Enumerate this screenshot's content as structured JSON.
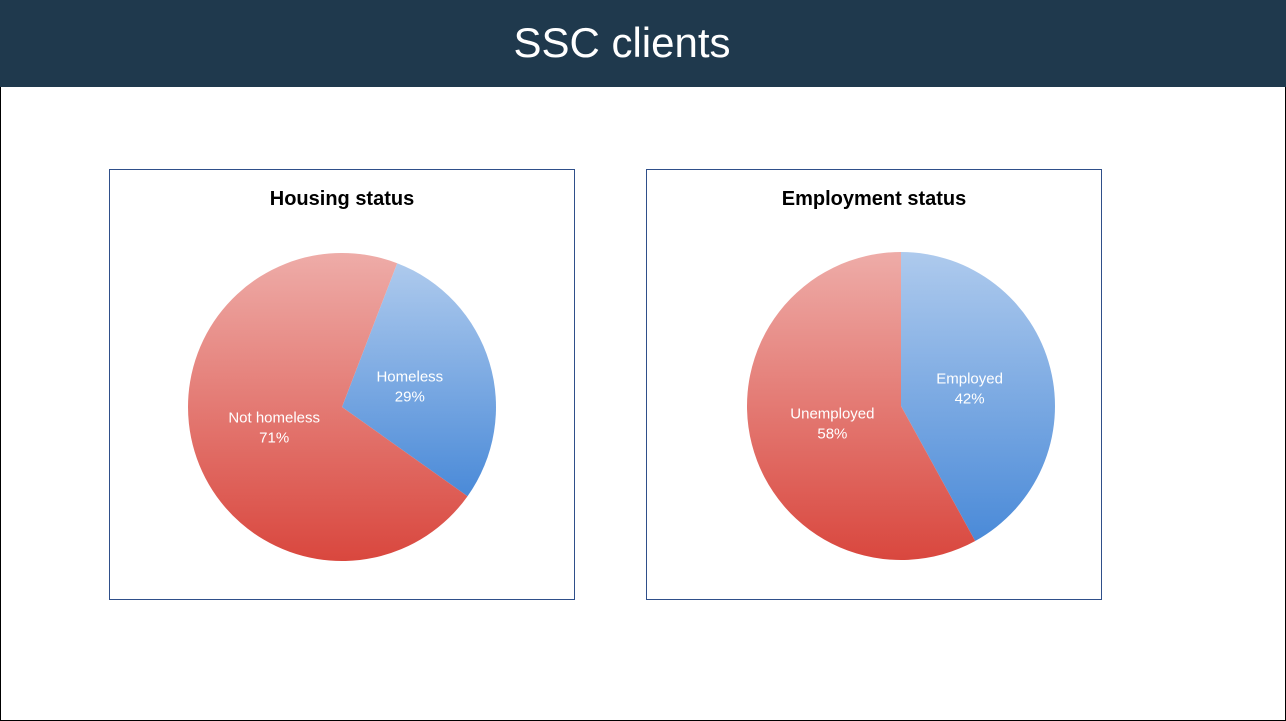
{
  "title": "SSC clients",
  "chart_data": [
    {
      "type": "pie",
      "title": "Housing status",
      "categories": [
        "Homeless",
        "Not homeless"
      ],
      "values": [
        29,
        71
      ],
      "value_labels": [
        "29%",
        "71%"
      ],
      "colors": [
        "#4a8ad8",
        "#d9473e"
      ]
    },
    {
      "type": "pie",
      "title": "Employment status",
      "categories": [
        "Employed",
        "Unemployed"
      ],
      "values": [
        42,
        58
      ],
      "value_labels": [
        "42%",
        "58%"
      ],
      "colors": [
        "#4a8ad8",
        "#d9473e"
      ]
    }
  ]
}
